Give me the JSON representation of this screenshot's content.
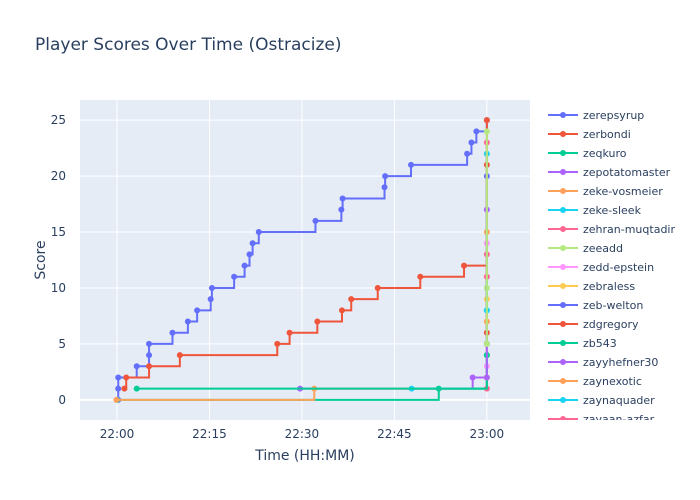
{
  "chart_data": {
    "type": "line",
    "line_shape": "step",
    "title": "Player Scores Over Time (Ostracize)",
    "xlabel": "Time (HH:MM)",
    "ylabel": "Score",
    "x_unit": "minutes after 22:00",
    "xlim": [
      -6,
      67
    ],
    "ylim": [
      -1.8,
      26.8
    ],
    "x_ticks": [
      {
        "value": 0,
        "label": "22:00"
      },
      {
        "value": 15,
        "label": "22:15"
      },
      {
        "value": 30,
        "label": "22:30"
      },
      {
        "value": 45,
        "label": "22:45"
      },
      {
        "value": 60,
        "label": "23:00"
      }
    ],
    "y_ticks": [
      0,
      5,
      10,
      15,
      20,
      25
    ],
    "grid": true,
    "legend_position": "right",
    "colors": {
      "plot_bg": "#E5ECF6",
      "grid": "#ffffff",
      "text": "#2a3f5f"
    },
    "series": [
      {
        "name": "zerepsyrup",
        "color": "#636EFA",
        "points": [
          [
            0.2,
            0
          ],
          [
            0.2,
            1
          ],
          [
            0.2,
            2
          ],
          [
            3.2,
            3
          ],
          [
            5.2,
            4
          ],
          [
            5.2,
            5
          ],
          [
            9,
            6
          ],
          [
            11.5,
            7
          ],
          [
            13,
            8
          ],
          [
            15.2,
            9
          ],
          [
            15.4,
            10
          ],
          [
            19,
            11
          ],
          [
            20.7,
            12
          ],
          [
            21.5,
            13
          ],
          [
            22,
            14
          ],
          [
            23,
            15
          ],
          [
            32.2,
            16
          ],
          [
            36.4,
            17
          ],
          [
            36.6,
            18
          ],
          [
            43.4,
            19
          ],
          [
            43.5,
            20
          ],
          [
            47.7,
            21
          ],
          [
            56.8,
            22
          ],
          [
            57.5,
            23
          ],
          [
            58.3,
            24
          ],
          [
            60,
            25
          ]
        ]
      },
      {
        "name": "zerbondi",
        "color": "#EF553B",
        "points": [
          [
            1.2,
            1
          ],
          [
            1.5,
            2
          ],
          [
            5.2,
            3
          ],
          [
            10.2,
            4
          ],
          [
            26,
            5
          ],
          [
            28,
            6
          ],
          [
            32.5,
            7
          ],
          [
            36.5,
            8
          ],
          [
            38,
            9
          ],
          [
            42.3,
            10
          ],
          [
            49.2,
            11
          ],
          [
            56.3,
            12
          ],
          [
            60,
            25
          ]
        ]
      },
      {
        "name": "zeqkuro",
        "color": "#00CC96",
        "points": [
          [
            0,
            0
          ],
          [
            52.2,
            1
          ],
          [
            60,
            4
          ]
        ]
      },
      {
        "name": "zepotatomaster",
        "color": "#AB63FA",
        "points": [
          [
            29.7,
            1
          ],
          [
            57.7,
            2
          ],
          [
            60,
            5
          ]
        ]
      },
      {
        "name": "zeke-vosmeier",
        "color": "#FFA15A",
        "points": [
          [
            -0.1,
            0
          ],
          [
            32,
            1
          ],
          [
            60,
            2
          ]
        ]
      },
      {
        "name": "zeke-sleek",
        "color": "#19D3F3",
        "points": [
          [
            47.8,
            1
          ],
          [
            60,
            8
          ]
        ]
      },
      {
        "name": "zehran-muqtadir",
        "color": "#FF6692",
        "points": [
          [
            60,
            1
          ],
          [
            60,
            13
          ]
        ]
      },
      {
        "name": "zeeadd",
        "color": "#B6E880",
        "points": [
          [
            60,
            2
          ],
          [
            60,
            10
          ]
        ]
      },
      {
        "name": "zedd-epstein",
        "color": "#FF97FF",
        "points": [
          [
            60,
            3
          ],
          [
            60,
            14
          ]
        ]
      },
      {
        "name": "zebraless",
        "color": "#FECB52",
        "points": [
          [
            60,
            4
          ],
          [
            60,
            9
          ]
        ]
      },
      {
        "name": "zeb-welton",
        "color": "#636EFA",
        "points": [
          [
            60,
            5
          ],
          [
            60,
            20
          ]
        ]
      },
      {
        "name": "zdgregory",
        "color": "#EF553B",
        "points": [
          [
            60,
            6
          ],
          [
            60,
            21
          ]
        ]
      },
      {
        "name": "zb543",
        "color": "#00CC96",
        "points": [
          [
            3.2,
            1
          ],
          [
            60,
            4
          ]
        ]
      },
      {
        "name": "zayyhefner30",
        "color": "#AB63FA",
        "points": [
          [
            60,
            2
          ],
          [
            60,
            17
          ]
        ]
      },
      {
        "name": "zaynexotic",
        "color": "#FFA15A",
        "points": [
          [
            60,
            7
          ],
          [
            60,
            15
          ]
        ]
      },
      {
        "name": "zaynaquader",
        "color": "#19D3F3",
        "points": [
          [
            60,
            8
          ],
          [
            60,
            22
          ]
        ]
      },
      {
        "name": "zayaan-azfar",
        "color": "#FF6692",
        "points": [
          [
            60,
            11
          ],
          [
            60,
            23
          ]
        ]
      },
      {
        "name": "",
        "color": "#B6E880",
        "points": [
          [
            60,
            5
          ],
          [
            60,
            24
          ]
        ]
      }
    ]
  }
}
